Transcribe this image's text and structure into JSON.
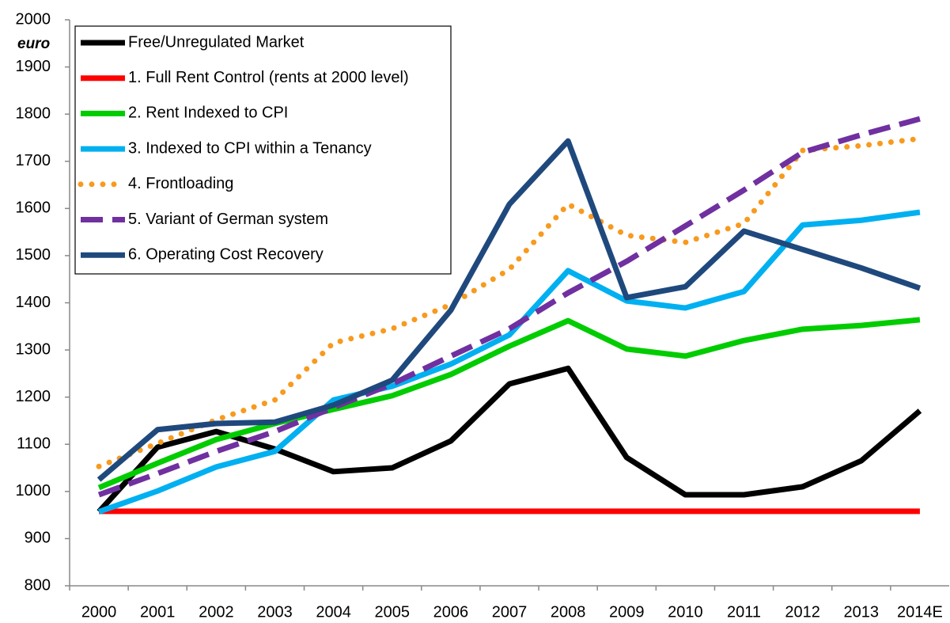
{
  "chart_data": {
    "type": "line",
    "y_label": "euro",
    "categories": [
      "2000",
      "2001",
      "2002",
      "2003",
      "2004",
      "2005",
      "2006",
      "2007",
      "2008",
      "2009",
      "2010",
      "2011",
      "2012",
      "2013",
      "2014E"
    ],
    "ylim": [
      800,
      2000
    ],
    "yticks": [
      800,
      900,
      1000,
      1100,
      1200,
      1300,
      1400,
      1500,
      1600,
      1700,
      1800,
      1900,
      2000
    ],
    "grid": false,
    "legend": "top-left",
    "series": [
      {
        "name": "Free/Unregulated Market",
        "color": "#000000",
        "style": "solid",
        "values": [
          957,
          1094,
          1127,
          1090,
          1042,
          1050,
          1107,
          1228,
          1261,
          1072,
          993,
          993,
          1010,
          1065,
          1171
        ]
      },
      {
        "name": "1. Full Rent Control (rents at 2000 level)",
        "color": "#ff0000",
        "style": "solid",
        "values": [
          958,
          958,
          958,
          958,
          958,
          958,
          958,
          958,
          958,
          958,
          958,
          958,
          958,
          958,
          958
        ]
      },
      {
        "name": "2. Rent Indexed to CPI",
        "color": "#00cc00",
        "style": "solid",
        "values": [
          1008,
          1060,
          1110,
          1144,
          1174,
          1203,
          1248,
          1308,
          1362,
          1302,
          1287,
          1320,
          1344,
          1352,
          1364
        ]
      },
      {
        "name": "3. Indexed to CPI within a Tenancy",
        "color": "#00b0f0",
        "style": "solid",
        "values": [
          957,
          1001,
          1052,
          1085,
          1194,
          1223,
          1270,
          1332,
          1468,
          1404,
          1389,
          1424,
          1565,
          1575,
          1592
        ]
      },
      {
        "name": "4. Frontloading",
        "color": "#f79a1e",
        "style": "dotted",
        "values": [
          1053,
          1102,
          1152,
          1194,
          1315,
          1345,
          1396,
          1471,
          1609,
          1543,
          1528,
          1568,
          1723,
          1733,
          1748
        ]
      },
      {
        "name": "5. Variant of German system",
        "color": "#7030a0",
        "style": "dashed",
        "values": [
          993,
          1038,
          1085,
          1127,
          1178,
          1228,
          1287,
          1345,
          1421,
          1488,
          1563,
          1639,
          1719,
          1756,
          1790
        ]
      },
      {
        "name": "6. Operating Cost Recovery",
        "color": "#1f497d",
        "style": "solid",
        "values": [
          1025,
          1131,
          1144,
          1147,
          1183,
          1236,
          1384,
          1609,
          1743,
          1411,
          1434,
          1552,
          1513,
          1474,
          1431
        ]
      }
    ]
  }
}
